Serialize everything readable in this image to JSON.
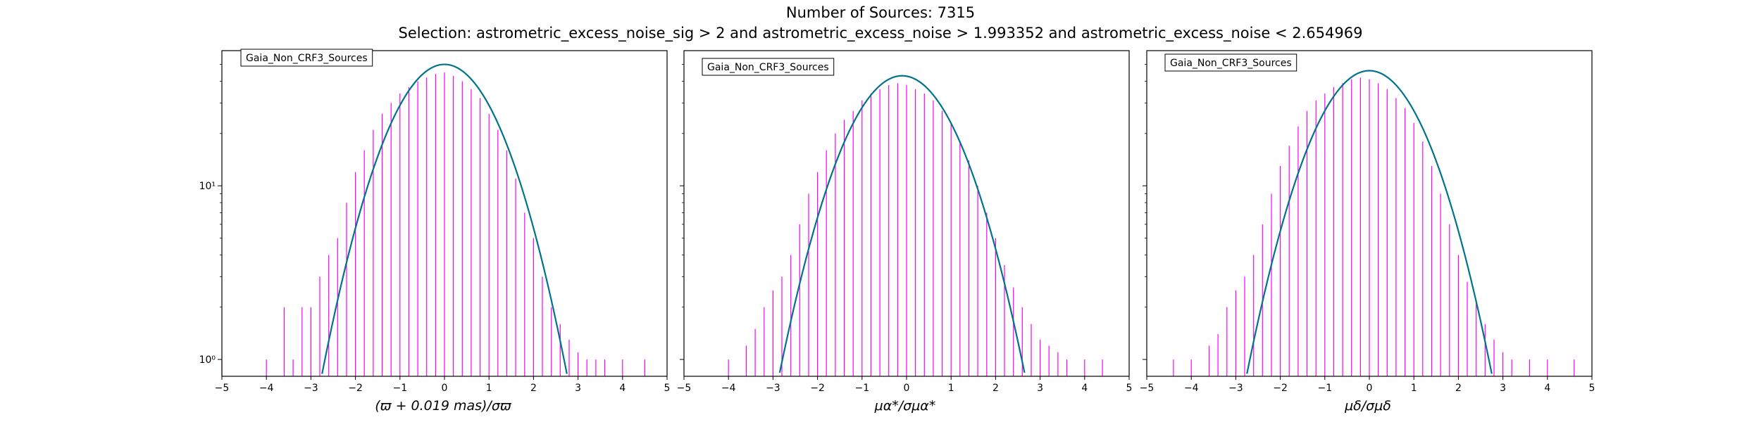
{
  "figure": {
    "title_line1": "Number of Sources: 7315",
    "title_line2": "Selection: astrometric_excess_noise_sig > 2 and astrometric_excess_noise > 1.993352 and astrometric_excess_noise < 2.654969"
  },
  "colors": {
    "histogram": "#ff00ff",
    "gaussian": "#00738a",
    "axes": "#000000"
  },
  "chart_data": [
    {
      "type": "line",
      "legend": "Gaia_Non_CRF3_Sources",
      "legend_placement": "top-left",
      "xlabel": "(ϖ + 0.019 mas)/σϖ",
      "xlim": [
        -5,
        5
      ],
      "ylim": [
        0.8,
        60
      ],
      "yscale": "log",
      "grid": false,
      "x_ticks": [
        "−5",
        "−4",
        "−3",
        "−2",
        "−1",
        "0",
        "1",
        "2",
        "3",
        "4",
        "5"
      ],
      "y_ticks": [
        {
          "value": 1,
          "label": "10⁰"
        },
        {
          "value": 10,
          "label": "10¹"
        }
      ],
      "series": [
        {
          "kind": "histogram",
          "x": [
            -5,
            -4,
            -3.6,
            -3.4,
            -3.2,
            -3,
            -2.8,
            -2.6,
            -2.4,
            -2.2,
            -2,
            -1.8,
            -1.6,
            -1.4,
            -1.2,
            -1,
            -0.8,
            -0.6,
            -0.4,
            -0.2,
            0,
            0.2,
            0.4,
            0.6,
            0.8,
            1,
            1.2,
            1.4,
            1.6,
            1.8,
            2,
            2.2,
            2.4,
            2.6,
            2.8,
            3,
            3.2,
            3.4,
            3.6,
            4,
            4.5
          ],
          "y": [
            1,
            1,
            2,
            1,
            2,
            2,
            3,
            4,
            5,
            8,
            12,
            16,
            21,
            26,
            30,
            34,
            37,
            40,
            42,
            44,
            45,
            43,
            40,
            36,
            32,
            26,
            21,
            16,
            11,
            7,
            5,
            3,
            2,
            1.6,
            1.3,
            1.1,
            1,
            1,
            1,
            1,
            1
          ]
        },
        {
          "kind": "gaussian",
          "amplitude": 50,
          "mean": 0,
          "sigma": 0.96
        }
      ]
    },
    {
      "type": "line",
      "legend": "Gaia_Non_CRF3_Sources",
      "legend_placement": "top-left",
      "xlabel": "μα*/σμα*",
      "xlim": [
        -5,
        5
      ],
      "ylim": [
        0.8,
        60
      ],
      "yscale": "log",
      "grid": false,
      "x_ticks": [
        "−5",
        "−4",
        "−3",
        "−2",
        "−1",
        "0",
        "1",
        "2",
        "3",
        "4",
        "5"
      ],
      "y_ticks": [
        {
          "value": 1,
          "label": ""
        },
        {
          "value": 10,
          "label": ""
        }
      ],
      "series": [
        {
          "kind": "histogram",
          "x": [
            -4,
            -3.6,
            -3.4,
            -3.2,
            -3,
            -2.8,
            -2.6,
            -2.4,
            -2.2,
            -2,
            -1.8,
            -1.6,
            -1.4,
            -1.2,
            -1,
            -0.8,
            -0.6,
            -0.4,
            -0.2,
            0,
            0.2,
            0.4,
            0.6,
            0.8,
            1,
            1.2,
            1.4,
            1.6,
            1.8,
            2,
            2.2,
            2.4,
            2.6,
            2.8,
            3,
            3.2,
            3.4,
            3.6,
            4,
            4.4
          ],
          "y": [
            1,
            1.2,
            1.5,
            2,
            2.5,
            3,
            4,
            6,
            9,
            12,
            16,
            20,
            24,
            27,
            31,
            34,
            36,
            38,
            39,
            38,
            36,
            34,
            31,
            27,
            23,
            18,
            14,
            10,
            7,
            5,
            3.5,
            2.6,
            2,
            1.6,
            1.3,
            1.2,
            1.1,
            1,
            1,
            1
          ]
        },
        {
          "kind": "gaussian",
          "amplitude": 43,
          "mean": -0.1,
          "sigma": 0.98
        }
      ]
    },
    {
      "type": "line",
      "legend": "Gaia_Non_CRF3_Sources",
      "legend_placement": "top-left",
      "xlabel": "μδ/σμδ",
      "xlim": [
        -5,
        5
      ],
      "ylim": [
        0.8,
        60
      ],
      "yscale": "log",
      "grid": false,
      "x_ticks": [
        "−5",
        "−4",
        "−3",
        "−2",
        "−1",
        "0",
        "1",
        "2",
        "3",
        "4",
        "5"
      ],
      "y_ticks": [
        {
          "value": 1,
          "label": ""
        },
        {
          "value": 10,
          "label": ""
        }
      ],
      "series": [
        {
          "kind": "histogram",
          "x": [
            -4.4,
            -4,
            -3.6,
            -3.4,
            -3.2,
            -3,
            -2.8,
            -2.6,
            -2.4,
            -2.2,
            -2,
            -1.8,
            -1.6,
            -1.4,
            -1.2,
            -1,
            -0.8,
            -0.6,
            -0.4,
            -0.2,
            0,
            0.2,
            0.4,
            0.6,
            0.8,
            1,
            1.2,
            1.4,
            1.6,
            1.8,
            2,
            2.2,
            2.4,
            2.6,
            2.8,
            3,
            3.2,
            3.6,
            4,
            4.6
          ],
          "y": [
            1,
            1,
            1.2,
            1.4,
            2,
            2.5,
            3,
            4,
            6,
            9,
            13,
            17,
            22,
            27,
            31,
            34,
            37,
            39,
            41,
            42,
            41,
            39,
            36,
            32,
            28,
            23,
            18,
            13,
            9,
            6,
            4,
            2.8,
            2.2,
            1.6,
            1.3,
            1.1,
            1,
            1,
            1,
            1
          ]
        },
        {
          "kind": "gaussian",
          "amplitude": 46,
          "mean": 0,
          "sigma": 0.97
        }
      ]
    }
  ]
}
